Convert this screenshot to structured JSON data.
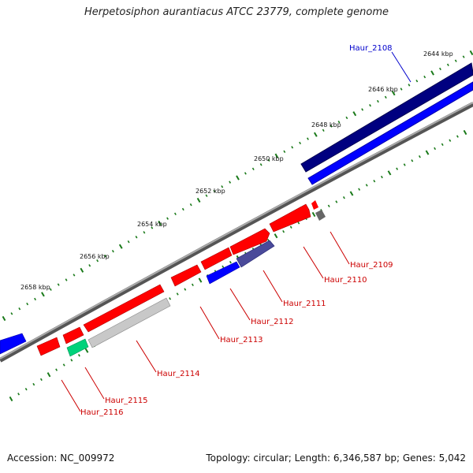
{
  "title": "Herpetosiphon aurantiacus ATCC 23779, complete genome",
  "footer": {
    "accession": "Accession: NC_009972",
    "topology": "Topology: circular; Length: 6,346,587 bp; Genes: 5,042"
  },
  "colors": {
    "backbone": "#888888",
    "tick": "#1a7a1a",
    "forward_gene": "#ff0000",
    "blue_gene": "#0000ff",
    "navy_gene": "#000080",
    "grey_gene": "#c8c8c8",
    "teal_gene": "#00d27a",
    "label_red": "#cc0000",
    "label_blue": "#0000cc"
  },
  "ticks": [
    "2644 kbp",
    "2646 kbp",
    "2648 kbp",
    "2650 kbp",
    "2652 kbp",
    "2654 kbp",
    "2656 kbp",
    "2658 kbp"
  ],
  "genes": [
    {
      "label": "Haur_2108",
      "color": "blue"
    },
    {
      "label": "Haur_2109",
      "color": "red"
    },
    {
      "label": "Haur_2110",
      "color": "red"
    },
    {
      "label": "Haur_2111",
      "color": "red"
    },
    {
      "label": "Haur_2112",
      "color": "red"
    },
    {
      "label": "Haur_2113",
      "color": "red"
    },
    {
      "label": "Haur_2114",
      "color": "red"
    },
    {
      "label": "Haur_2115",
      "color": "red"
    },
    {
      "label": "Haur_2116",
      "color": "red"
    }
  ]
}
